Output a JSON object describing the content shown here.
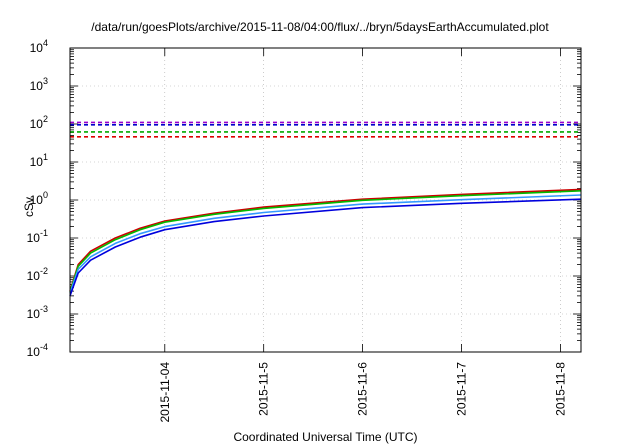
{
  "chart_data": {
    "type": "line",
    "title": "/data/run/goesPlots/archive/2015-11-08/04:00/flux/../bryn/5daysEarthAccumulated.plot",
    "xlabel": "Coordinated Universal Time (UTC)",
    "ylabel": "cSv",
    "yscale": "log",
    "ylim_exponents": [
      -4,
      4
    ],
    "ytick_exponents": [
      -4,
      -3,
      -2,
      -1,
      0,
      1,
      2,
      3,
      4
    ],
    "ytick_base": "10",
    "xlim": [
      "2015-11-03T01:00",
      "2015-11-08T05:00"
    ],
    "xticks": [
      "2015-11-04",
      "2015-11-5",
      "2015-11-6",
      "2015-11-7",
      "2015-11-8"
    ],
    "grid": true,
    "series": [
      {
        "color": "#cc0000",
        "style": "solid",
        "x": [
          "2015-11-03T01:00",
          "2015-11-03T03:00",
          "2015-11-03T06:00",
          "2015-11-03T12:00",
          "2015-11-03T18:00",
          "2015-11-04T00:00",
          "2015-11-04T12:00",
          "2015-11-05T00:00",
          "2015-11-06T00:00",
          "2015-11-07T00:00",
          "2015-11-08T05:00"
        ],
        "y": [
          0.004,
          0.02,
          0.045,
          0.1,
          0.18,
          0.28,
          0.45,
          0.65,
          1.05,
          1.4,
          1.9
        ]
      },
      {
        "color": "#00bb00",
        "style": "solid",
        "x": [
          "2015-11-03T01:00",
          "2015-11-03T03:00",
          "2015-11-03T06:00",
          "2015-11-03T12:00",
          "2015-11-03T18:00",
          "2015-11-04T00:00",
          "2015-11-04T12:00",
          "2015-11-05T00:00",
          "2015-11-06T00:00",
          "2015-11-07T00:00",
          "2015-11-08T05:00"
        ],
        "y": [
          0.0038,
          0.018,
          0.04,
          0.09,
          0.165,
          0.26,
          0.42,
          0.6,
          0.98,
          1.3,
          1.75
        ]
      },
      {
        "color": "#3399ff",
        "style": "solid",
        "x": [
          "2015-11-03T01:00",
          "2015-11-03T03:00",
          "2015-11-03T06:00",
          "2015-11-03T12:00",
          "2015-11-03T18:00",
          "2015-11-04T00:00",
          "2015-11-04T12:00",
          "2015-11-05T00:00",
          "2015-11-06T00:00",
          "2015-11-07T00:00",
          "2015-11-08T05:00"
        ],
        "y": [
          0.0035,
          0.015,
          0.032,
          0.072,
          0.13,
          0.2,
          0.33,
          0.47,
          0.78,
          1.02,
          1.35
        ]
      },
      {
        "color": "#0000dd",
        "style": "solid",
        "x": [
          "2015-11-03T01:00",
          "2015-11-03T03:00",
          "2015-11-03T06:00",
          "2015-11-03T12:00",
          "2015-11-03T18:00",
          "2015-11-04T00:00",
          "2015-11-04T12:00",
          "2015-11-05T00:00",
          "2015-11-06T00:00",
          "2015-11-07T00:00",
          "2015-11-08T05:00"
        ],
        "y": [
          0.003,
          0.012,
          0.026,
          0.058,
          0.105,
          0.165,
          0.27,
          0.38,
          0.63,
          0.82,
          1.05
        ]
      },
      {
        "color": "#9900cc",
        "style": "dashed",
        "x": [
          "2015-11-03T01:00",
          "2015-11-08T05:00"
        ],
        "y": [
          110,
          110
        ]
      },
      {
        "color": "#0000cc",
        "style": "dashed",
        "x": [
          "2015-11-03T01:00",
          "2015-11-08T05:00"
        ],
        "y": [
          95,
          95
        ]
      },
      {
        "color": "#00aa00",
        "style": "dashed",
        "x": [
          "2015-11-03T01:00",
          "2015-11-08T05:00"
        ],
        "y": [
          62,
          62
        ]
      },
      {
        "color": "#dd0000",
        "style": "dashed",
        "x": [
          "2015-11-03T01:00",
          "2015-11-08T05:00"
        ],
        "y": [
          46,
          46
        ]
      }
    ]
  }
}
